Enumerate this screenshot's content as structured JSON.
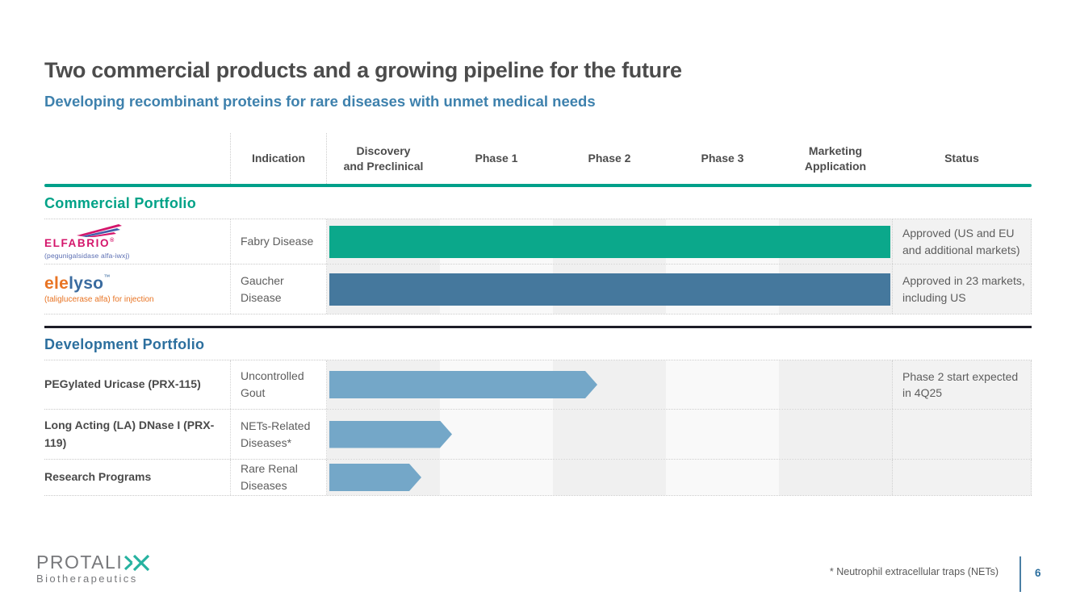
{
  "slide": {
    "title": "Two commercial products and a growing pipeline for the future",
    "subtitle": "Developing recombinant proteins for rare diseases with unmet medical needs"
  },
  "table": {
    "headers": [
      "Indication",
      "Discovery\nand Preclinical",
      "Phase 1",
      "Phase 2",
      "Phase 3",
      "Marketing\nApplication",
      "Status"
    ]
  },
  "sections": [
    {
      "label": "Commercial Portfolio",
      "rows": [
        {
          "product_brand": "ELFABRIO",
          "product_reg_mark": "®",
          "product_tagline": "(pegunigalsidase alfa-iwxj)",
          "indication": "Fabry Disease",
          "status": "Approved (US and EU and additional markets)",
          "bar": {
            "fraction": 0.993,
            "color": "#0BA88B",
            "arrow": false,
            "phase_reached": "Marketing Application"
          }
        },
        {
          "product_brand_part1": "ele",
          "product_brand_part2": "lyso",
          "product_tm_mark": "™",
          "product_tagline": "(taliglucerase alfa) for injection",
          "indication": "Gaucher Disease",
          "status": "Approved in 23 markets, including US",
          "bar": {
            "fraction": 0.993,
            "color": "#45789D",
            "arrow": false,
            "phase_reached": "Marketing Application"
          }
        }
      ]
    },
    {
      "label": "Development Portfolio",
      "rows": [
        {
          "program": "PEGylated Uricase (PRX-115)",
          "indication": "Uncontrolled Gout",
          "status": "Phase 2 start expected in 4Q25",
          "bar": {
            "fraction": 0.474,
            "color": "#74A7C8",
            "arrow": true,
            "phase_reached": "Phase 2"
          }
        },
        {
          "program": "Long Acting (LA) DNase I (PRX-119)",
          "indication": "NETs-Related Diseases*",
          "status": "",
          "bar": {
            "fraction": 0.217,
            "color": "#74A7C8",
            "arrow": true,
            "phase_reached": "Phase 1"
          }
        },
        {
          "program": "Research Programs",
          "indication": "Rare Renal Diseases",
          "status": "",
          "bar": {
            "fraction": 0.163,
            "color": "#74A7C8",
            "arrow": true,
            "phase_reached": "Discovery and Preclinical"
          }
        }
      ]
    }
  ],
  "footer": {
    "logo_name": "PROTALI",
    "logo_sub": "Biotherapeutics",
    "footnote": "* Neutrophil extracellular traps (NETs)",
    "page_number": "6"
  },
  "colors": {
    "accent_teal": "#00A287",
    "accent_blue": "#2C6F9E",
    "commercial_bar_teal": "#0BA88B",
    "commercial_bar_blue": "#45789D",
    "development_bar_blue": "#74A7C8",
    "elfabrio_pink": "#d4156b",
    "elelyso_orange": "#E87424",
    "page_number_blue": "#2C6F9E"
  }
}
